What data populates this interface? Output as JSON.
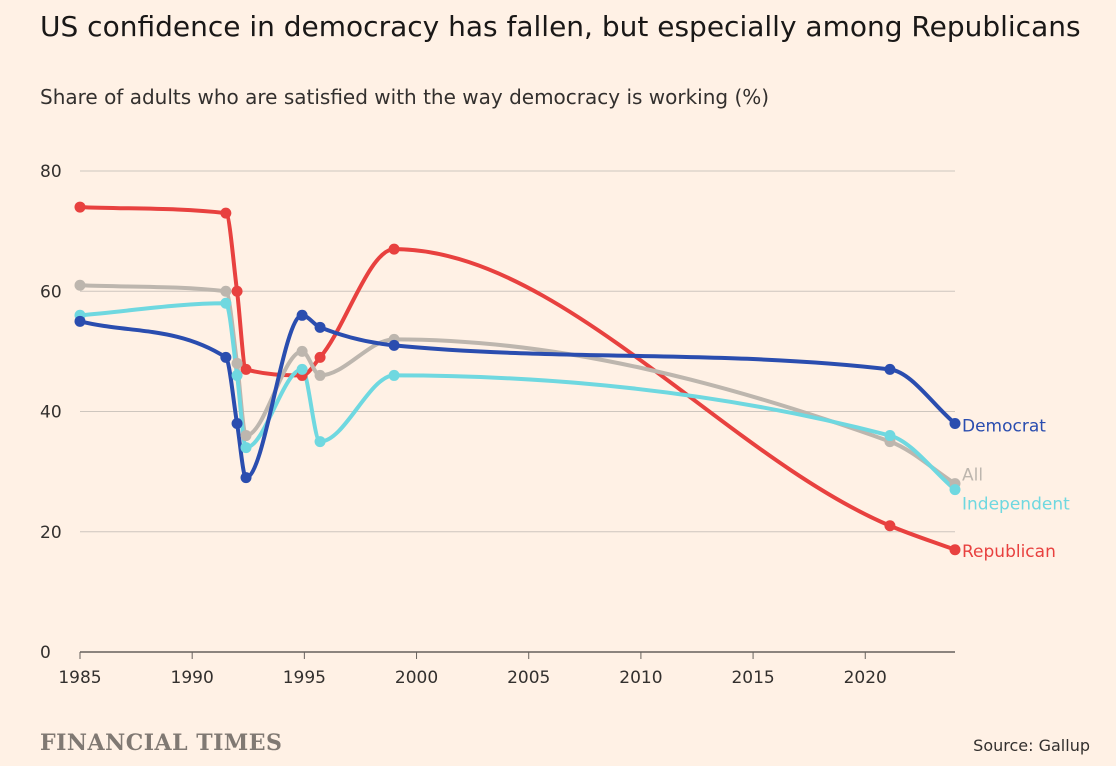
{
  "header": {
    "title": "US confidence in democracy has fallen, but especially among Republicans",
    "subtitle": "Share of adults who are satisfied with the way democracy is working (%)"
  },
  "footer": {
    "brand": "FINANCIAL TIMES",
    "source": "Source: Gallup"
  },
  "chart_data": {
    "type": "line",
    "title": "US confidence in democracy has fallen, but especially among Republicans",
    "subtitle": "Share of adults who are satisfied with the way democracy is working (%)",
    "xlim": [
      1985,
      2024
    ],
    "ylim": [
      0,
      80
    ],
    "x_ticks": [
      1985,
      1990,
      1995,
      2000,
      2005,
      2010,
      2015,
      2020
    ],
    "y_ticks": [
      0,
      20,
      40,
      60,
      80
    ],
    "grid": "horizontal",
    "legend": "direct labels at line ends",
    "series": [
      {
        "name": "Republican",
        "color": "#E8413F",
        "points": [
          [
            1985,
            74
          ],
          [
            1991.5,
            73
          ],
          [
            1992,
            60
          ],
          [
            1992.4,
            47
          ],
          [
            1994.9,
            46
          ],
          [
            1995.7,
            49
          ],
          [
            1999,
            67
          ],
          [
            2021.1,
            21
          ],
          [
            2024,
            17
          ]
        ]
      },
      {
        "name": "All",
        "color": "#BDB6AE",
        "points": [
          [
            1985,
            61
          ],
          [
            1991.5,
            60
          ],
          [
            1992,
            48
          ],
          [
            1992.4,
            36
          ],
          [
            1994.9,
            50
          ],
          [
            1995.7,
            46
          ],
          [
            1999,
            52
          ],
          [
            2021.1,
            35
          ],
          [
            2024,
            28
          ]
        ]
      },
      {
        "name": "Independent",
        "color": "#6FD8E0",
        "points": [
          [
            1985,
            56
          ],
          [
            1991.5,
            58
          ],
          [
            1992,
            46
          ],
          [
            1992.4,
            34
          ],
          [
            1994.9,
            47
          ],
          [
            1995.7,
            35
          ],
          [
            1999,
            46
          ],
          [
            2021.1,
            36
          ],
          [
            2024,
            27
          ]
        ]
      },
      {
        "name": "Democrat",
        "color": "#2A4DAF",
        "points": [
          [
            1985,
            55
          ],
          [
            1991.5,
            49
          ],
          [
            1992,
            38
          ],
          [
            1992.4,
            29
          ],
          [
            1994.9,
            56
          ],
          [
            1995.7,
            54
          ],
          [
            1999,
            51
          ],
          [
            2021.1,
            47
          ],
          [
            2024,
            38
          ]
        ]
      }
    ]
  }
}
